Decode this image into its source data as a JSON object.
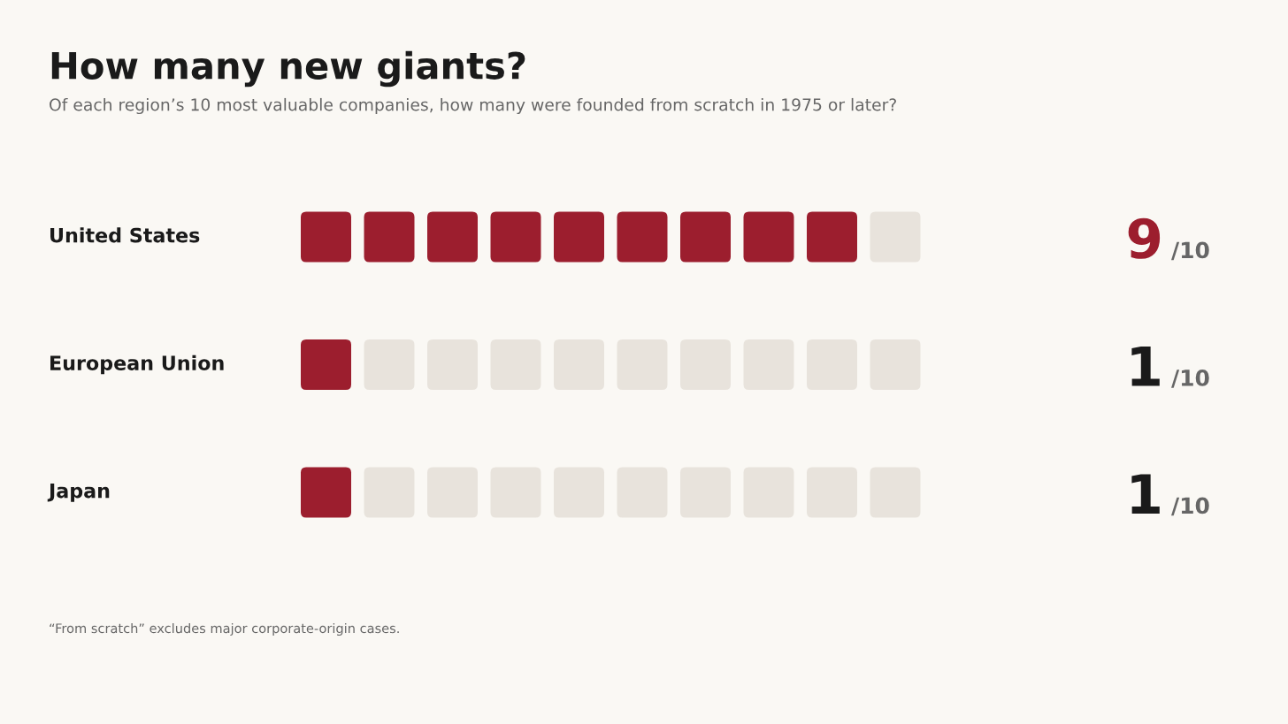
{
  "chart_data": {
    "type": "other",
    "title": "How many new giants?",
    "subtitle": "Of each region’s 10 most valuable companies, how many were founded from scratch in 1975 or later?",
    "categories": [
      "United States",
      "European Union",
      "Japan"
    ],
    "series": [
      {
        "color": "#9c1e2e",
        "values": [
          9,
          1,
          1
        ]
      },
      {
        "color": "#e8e3dc",
        "values": [
          10,
          10,
          10
        ],
        "value_labels": [
          "/10",
          "/10",
          "/10"
        ]
      }
    ],
    "data_labels": true,
    "colors": [
      "#9c1e2e",
      "#1a1a1a",
      "#1a1a1a"
    ],
    "annotations": [
      "“From scratch” excludes major corporate-origin cases."
    ]
  }
}
